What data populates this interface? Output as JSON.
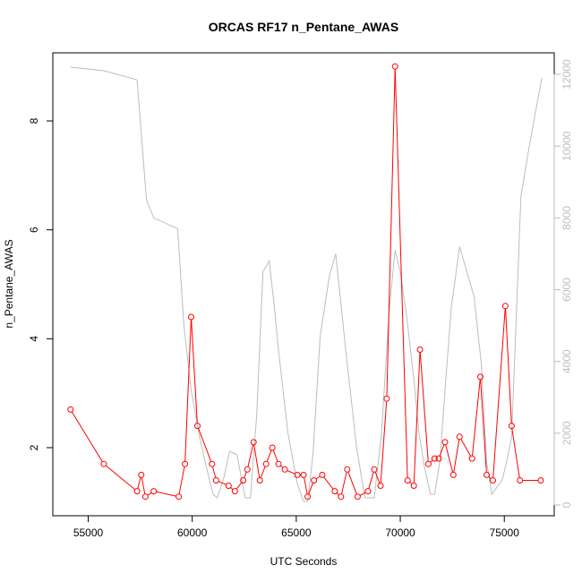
{
  "chart_data": {
    "type": "line",
    "title": "ORCAS RF17 n_Pentane_AWAS",
    "xlabel": "UTC Seconds",
    "ylabel": "n_Pentane_AWAS",
    "xlim": [
      53300,
      77400
    ],
    "ylim": [
      0.75,
      9.25
    ],
    "y2lim": [
      -300,
      12600
    ],
    "x_ticks": [
      55000,
      60000,
      65000,
      70000,
      75000
    ],
    "x_tick_labels": [
      "55000",
      "60000",
      "65000",
      "70000",
      "75000"
    ],
    "y_ticks": [
      2,
      4,
      6,
      8
    ],
    "y_tick_labels": [
      "2",
      "4",
      "6",
      "8"
    ],
    "y2_ticks": [
      0,
      2000,
      4000,
      6000,
      8000,
      10000,
      12000
    ],
    "y2_tick_labels": [
      "0",
      "2000",
      "4000",
      "6000",
      "8000",
      "10000",
      "12000"
    ],
    "grid": false,
    "colors": {
      "primary": "#ff0000",
      "secondary": "#bdbdbd",
      "axis": "#000000"
    },
    "series": [
      {
        "axis": "left",
        "style": "line+markers",
        "x": [
          54150,
          55750,
          57350,
          57550,
          57750,
          58150,
          59350,
          59650,
          59950,
          60250,
          60950,
          61150,
          61750,
          62050,
          62450,
          62650,
          62950,
          63250,
          63550,
          63850,
          64150,
          64450,
          65050,
          65350,
          65550,
          65850,
          66250,
          66850,
          67150,
          67450,
          67950,
          68450,
          68750,
          69050,
          69350,
          69750,
          70350,
          70650,
          70950,
          71350,
          71650,
          71850,
          72150,
          72550,
          72850,
          73450,
          73850,
          74150,
          74450,
          75050,
          75350,
          75750,
          76750
        ],
        "y": [
          2.7,
          1.7,
          1.2,
          1.5,
          1.1,
          1.2,
          1.1,
          1.7,
          4.4,
          2.4,
          1.7,
          1.4,
          1.3,
          1.2,
          1.4,
          1.6,
          2.1,
          1.4,
          1.7,
          2.0,
          1.7,
          1.6,
          1.5,
          1.5,
          1.1,
          1.4,
          1.5,
          1.2,
          1.1,
          1.6,
          1.1,
          1.2,
          1.6,
          1.3,
          2.9,
          9.0,
          1.4,
          1.3,
          3.8,
          1.7,
          1.8,
          1.8,
          2.1,
          1.5,
          2.2,
          1.8,
          3.3,
          1.5,
          1.4,
          4.6,
          2.4,
          1.4,
          1.4
        ]
      },
      {
        "axis": "right",
        "style": "line",
        "x": [
          54150,
          55750,
          57350,
          57800,
          58150,
          59300,
          59600,
          59950,
          60350,
          60700,
          61000,
          61200,
          61500,
          61800,
          62150,
          62550,
          62800,
          63100,
          63400,
          63700,
          63950,
          64150,
          64600,
          65050,
          65350,
          65550,
          65800,
          66150,
          66600,
          66900,
          67400,
          67900,
          68300,
          68750,
          69100,
          69450,
          69750,
          70000,
          70300,
          70650,
          70900,
          71150,
          71450,
          71650,
          71900,
          72150,
          72450,
          72850,
          73200,
          73550,
          73900,
          74150,
          74400,
          74900,
          75150,
          75350,
          75800,
          76200,
          76800
        ],
        "y": [
          12200,
          12100,
          11850,
          8500,
          8000,
          7700,
          5000,
          3200,
          1900,
          1000,
          300,
          200,
          700,
          1500,
          1400,
          200,
          200,
          2500,
          6500,
          6800,
          5500,
          4300,
          2000,
          600,
          100,
          100,
          1400,
          4700,
          6400,
          7000,
          4200,
          1600,
          200,
          200,
          2000,
          5300,
          7100,
          6500,
          5300,
          3500,
          2000,
          1100,
          300,
          300,
          1200,
          3200,
          5500,
          7200,
          6500,
          5800,
          3900,
          1200,
          300,
          700,
          1300,
          1900,
          8600,
          10000,
          11900
        ]
      }
    ]
  }
}
